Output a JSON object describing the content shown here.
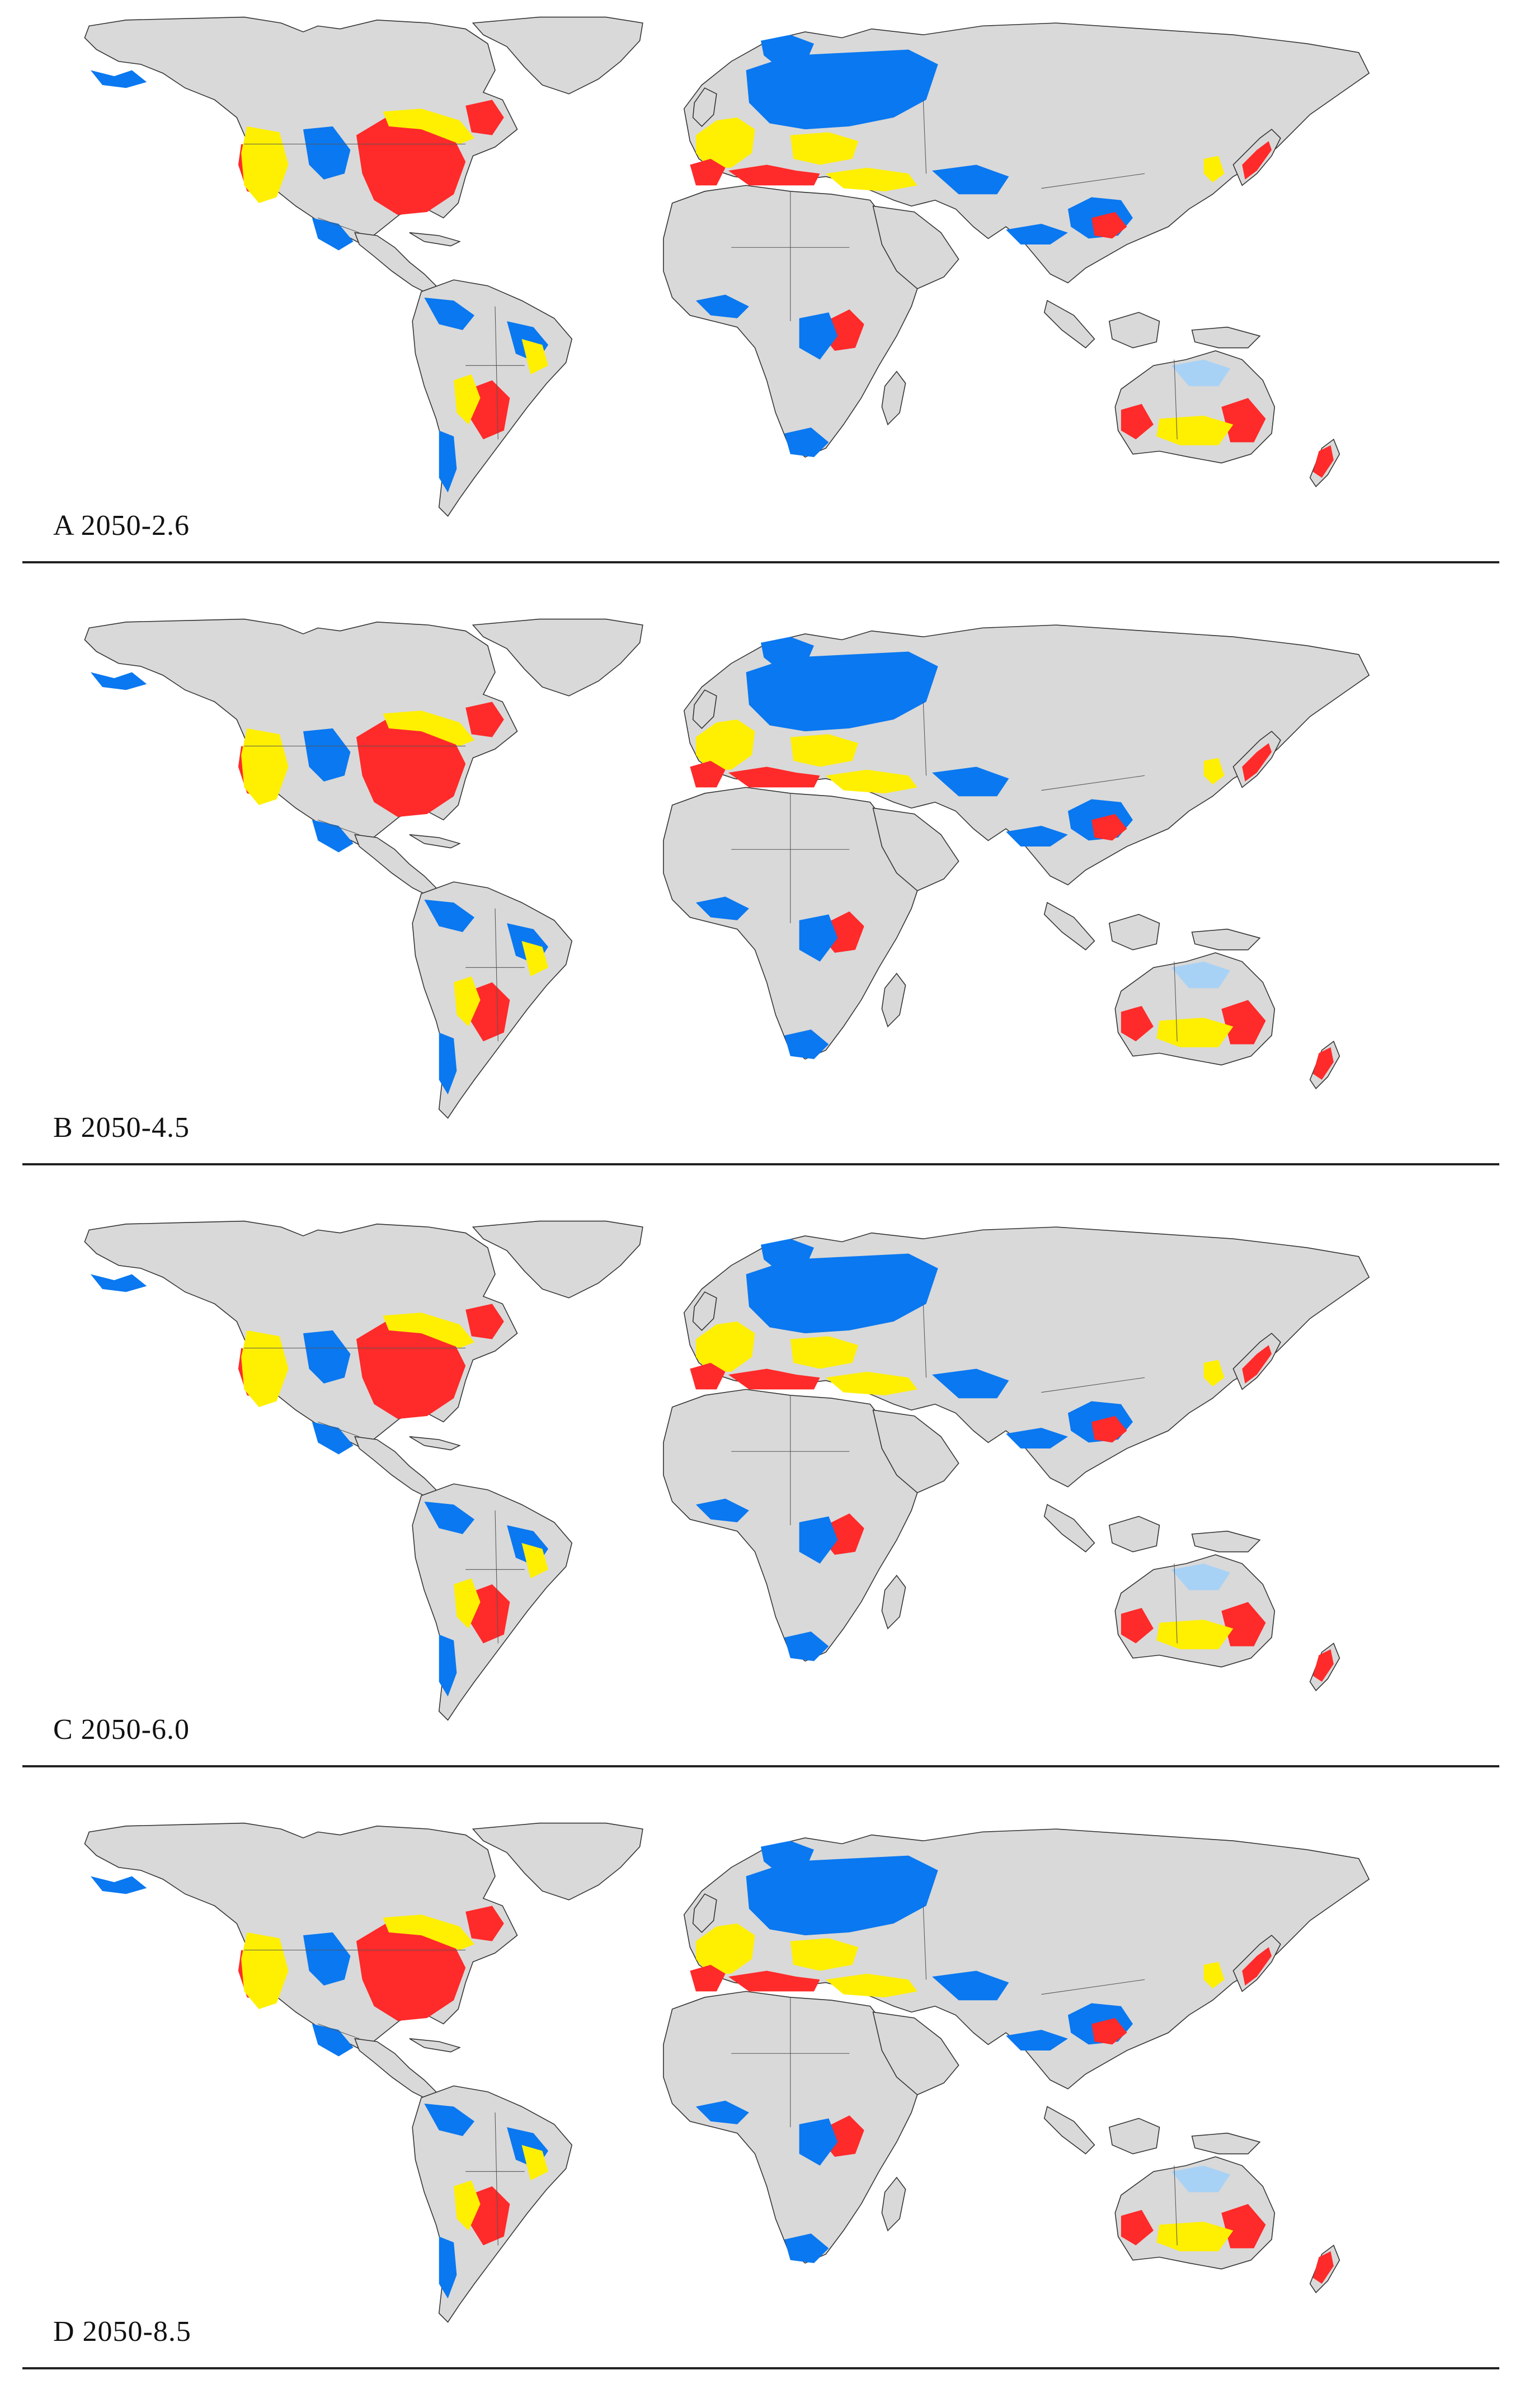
{
  "panels": [
    {
      "label": "A 2050-2.6"
    },
    {
      "label": "B 2050-4.5"
    },
    {
      "label": "C 2050-6.0"
    },
    {
      "label": "D 2050-8.5"
    }
  ],
  "colors": {
    "land": "#d9d9d9",
    "border": "#555555",
    "high": "#ff2a2a",
    "moderate": "#ffef00",
    "low": "#0a78f0",
    "very_low": "#a8d2f5",
    "transition": "#79c979"
  }
}
